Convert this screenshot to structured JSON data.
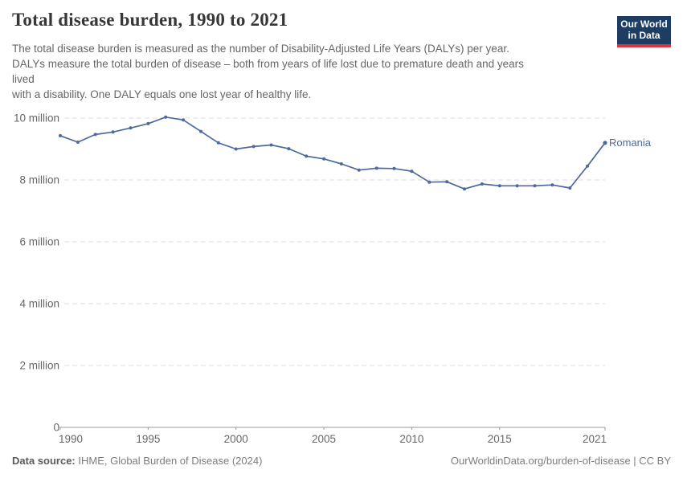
{
  "header": {
    "title": "Total disease burden, 1990 to 2021",
    "subtitle": "The total disease burden is measured as the number of Disability-Adjusted Life Years (DALYs) per year.\nDALYs measure the total burden of disease – both from years of life lost due to premature death and years\nlived\nwith a disability. One DALY equals one lost year of healthy life."
  },
  "logo": {
    "line1": "Our World",
    "line2": "in Data",
    "bg_color": "#1d3d63",
    "bar_color": "#d8353f"
  },
  "chart_data": {
    "type": "line",
    "title": "Total disease burden, 1990 to 2021",
    "unit": "DALYs (million) per year",
    "x": [
      1990,
      1991,
      1992,
      1993,
      1994,
      1995,
      1996,
      1997,
      1998,
      1999,
      2000,
      2001,
      2002,
      2003,
      2004,
      2005,
      2006,
      2007,
      2008,
      2009,
      2010,
      2011,
      2012,
      2013,
      2014,
      2015,
      2016,
      2017,
      2018,
      2019,
      2020,
      2021
    ],
    "series": [
      {
        "name": "Romania",
        "color": "#4C6A9C",
        "values": [
          9.43,
          9.22,
          9.47,
          9.55,
          9.68,
          9.82,
          10.03,
          9.94,
          9.57,
          9.2,
          9.0,
          9.08,
          9.13,
          9.01,
          8.77,
          8.68,
          8.52,
          8.32,
          8.38,
          8.37,
          8.28,
          7.93,
          7.94,
          7.71,
          7.87,
          7.81,
          7.81,
          7.81,
          7.84,
          7.74,
          8.45,
          9.2
        ]
      }
    ],
    "ylim": [
      0,
      10.5
    ],
    "yticks": [
      0,
      2,
      4,
      6,
      8,
      10
    ],
    "ytick_labels": [
      "0",
      "2 million",
      "4 million",
      "6 million",
      "8 million",
      "10 million"
    ],
    "xticks": [
      1990,
      1995,
      2000,
      2005,
      2010,
      2015,
      2021
    ],
    "grid": "horizontal-dashed",
    "legend": "line-end-label"
  },
  "footer": {
    "source_label": "Data source:",
    "source_text": " IHME, Global Burden of Disease (2024)",
    "license_text": "OurWorldinData.org/burden-of-disease | CC BY"
  },
  "colors": {
    "line": "#4C6A9C",
    "grid": "#dddddd",
    "axis": "#999999",
    "tick_label": "#666666"
  }
}
